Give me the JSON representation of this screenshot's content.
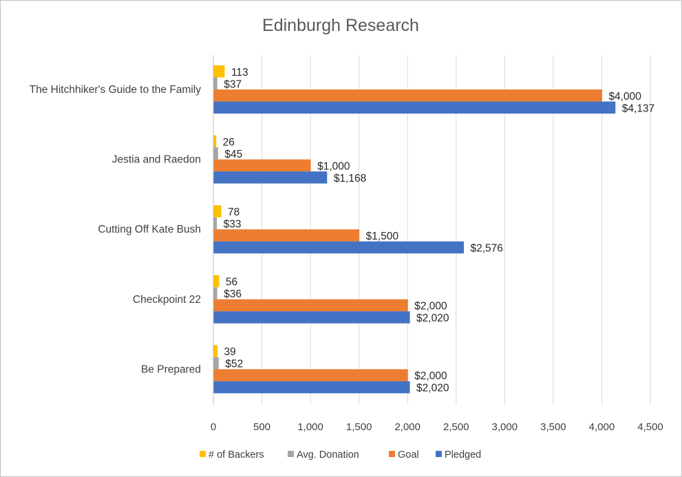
{
  "chart_data": {
    "type": "bar",
    "orientation": "horizontal",
    "title": "Edinburgh Research",
    "xlabel": "",
    "ylabel": "",
    "categories": [
      "The Hitchhiker's Guide to the Family",
      "Jestia and Raedon",
      "Cutting Off Kate Bush",
      "Checkpoint 22",
      "Be Prepared"
    ],
    "series": [
      {
        "name": "# of Backers",
        "color": "#ffc000",
        "values": [
          113,
          26,
          78,
          56,
          39
        ],
        "labels": [
          "113",
          "26",
          "78",
          "56",
          "39"
        ]
      },
      {
        "name": "Avg. Donation",
        "color": "#a5a5a5",
        "values": [
          37,
          45,
          33,
          36,
          52
        ],
        "labels": [
          "$37",
          "$45",
          "$33",
          "$36",
          "$52"
        ]
      },
      {
        "name": "Goal",
        "color": "#ed7d31",
        "values": [
          4000,
          1000,
          1500,
          2000,
          2000
        ],
        "labels": [
          "$4,000",
          "$1,000",
          "$1,500",
          "$2,000",
          "$2,000"
        ]
      },
      {
        "name": "Pledged",
        "color": "#4472c4",
        "values": [
          4137,
          1168,
          2576,
          2020,
          2020
        ],
        "labels": [
          "$4,137",
          "$1,168",
          "$2,576",
          "$2,020",
          "$2,020"
        ]
      }
    ],
    "xlim": [
      0,
      4500
    ],
    "xticks": [
      0,
      500,
      1000,
      1500,
      2000,
      2500,
      3000,
      3500,
      4000,
      4500
    ],
    "xtick_labels": [
      "0",
      "500",
      "1,000",
      "1,500",
      "2,000",
      "2,500",
      "3,000",
      "3,500",
      "4,000",
      "4,500"
    ],
    "grid": true,
    "legend": "bottom"
  }
}
